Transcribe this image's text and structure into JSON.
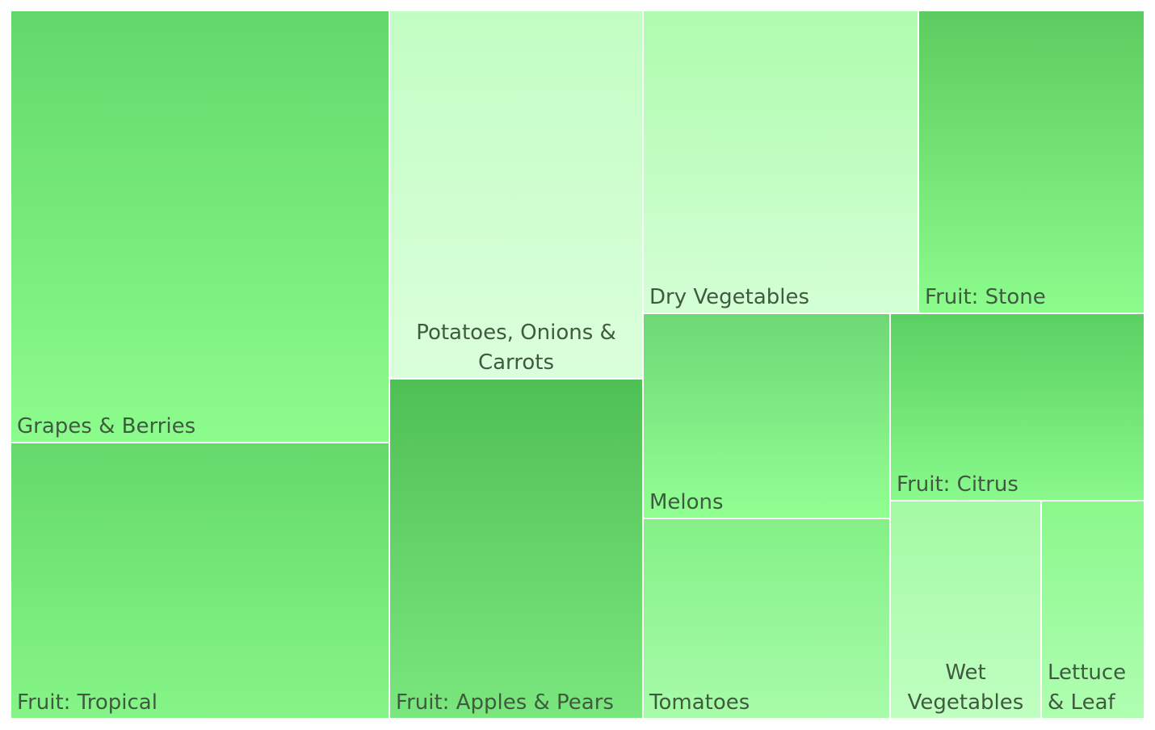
{
  "chart_data": {
    "type": "treemap",
    "items": [
      {
        "label": "Grapes & Berries",
        "lines": [
          "Grapes & Berries"
        ],
        "value": 2500,
        "top_color": "#63d86a",
        "bottom_color": "#8cfc8d"
      },
      {
        "label": "Fruit: Tropical",
        "lines": [
          "Fruit: Tropical"
        ],
        "value": 1620,
        "top_color": "#65d96b",
        "bottom_color": "#86f588"
      },
      {
        "label": "Potatoes, Onions & Carrots",
        "lines": [
          "Potatoes, Onions &",
          "Carrots"
        ],
        "value": 1430,
        "top_color": "#c2fec3",
        "bottom_color": "#dbffdc"
      },
      {
        "label": "Fruit: Apples & Pears",
        "lines": [
          "Fruit: Apples & Pears"
        ],
        "value": 1320,
        "top_color": "#4fc054",
        "bottom_color": "#7ae77e"
      },
      {
        "label": "Dry Vegetables",
        "lines": [
          "Dry Vegetables"
        ],
        "value": 1280,
        "top_color": "#aefcae",
        "bottom_color": "#d4ffd5"
      },
      {
        "label": "Fruit: Stone",
        "lines": [
          "Fruit: Stone"
        ],
        "value": 1050,
        "top_color": "#5ccc60",
        "bottom_color": "#8cfc8d"
      },
      {
        "label": "Melons",
        "lines": [
          "Melons"
        ],
        "value": 780,
        "top_color": "#6ed875",
        "bottom_color": "#92ff93"
      },
      {
        "label": "Tomatoes",
        "lines": [
          "Tomatoes"
        ],
        "value": 760,
        "top_color": "#83f086",
        "bottom_color": "#a8fca9"
      },
      {
        "label": "Fruit: Citrus",
        "lines": [
          "Fruit: Citrus"
        ],
        "value": 730,
        "top_color": "#5bd062",
        "bottom_color": "#89f98b"
      },
      {
        "label": "Wet Vegetables",
        "lines": [
          "Wet",
          "Vegetables"
        ],
        "value": 500,
        "top_color": "#a3faa4",
        "bottom_color": "#c0ffc1"
      },
      {
        "label": "Lettuce & Leaf",
        "lines": [
          "Lettuce",
          "& Leaf"
        ],
        "value": 340,
        "top_color": "#8af88b",
        "bottom_color": "#b0feb1"
      }
    ]
  }
}
